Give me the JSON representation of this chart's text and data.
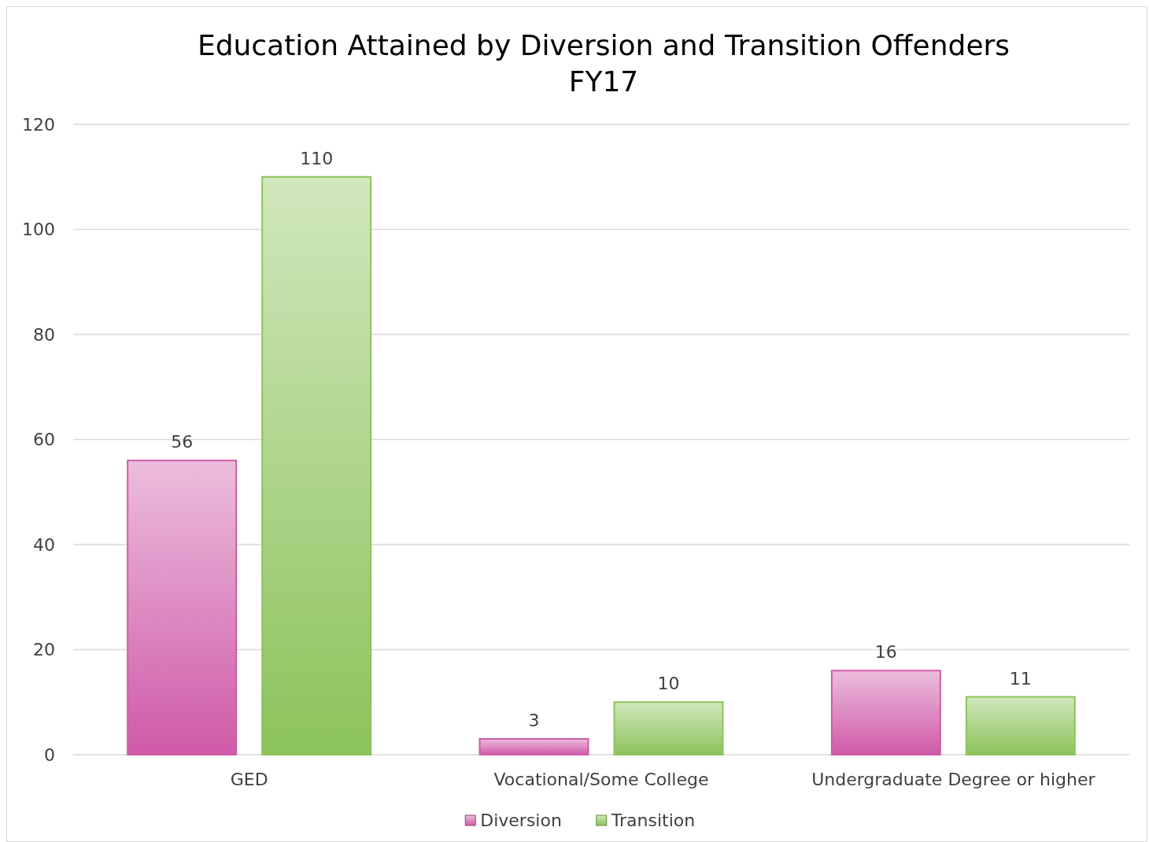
{
  "chart_data": {
    "type": "bar",
    "title": "Education Attained by Diversion and Transition Offenders\nFY17",
    "categories": [
      "GED",
      "Vocational/Some College",
      "Undergraduate Degree or higher"
    ],
    "series": [
      {
        "name": "Diversion",
        "color": "#cf5aa8",
        "values": [
          56,
          3,
          16
        ]
      },
      {
        "name": "Transition",
        "color": "#8cc35a",
        "values": [
          110,
          10,
          11
        ]
      }
    ],
    "ylim": [
      0,
      120
    ],
    "yticks": [
      0,
      20,
      40,
      60,
      80,
      100,
      120
    ],
    "grid": "y",
    "legend": "bottom",
    "data_labels": true
  }
}
